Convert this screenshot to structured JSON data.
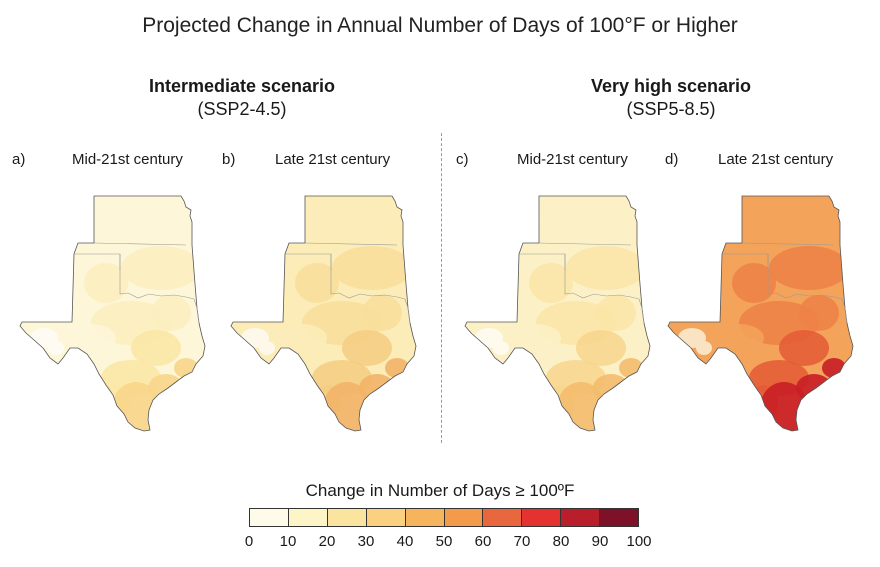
{
  "title": "Projected Change in Annual Number of Days of 100°F or Higher",
  "scenarios": [
    {
      "name": "Intermediate scenario",
      "code": "(SSP2-4.5)"
    },
    {
      "name": "Very high scenario",
      "code": "(SSP5-8.5)"
    }
  ],
  "panels": [
    {
      "letter": "a)",
      "label": "Mid-21st century",
      "scenario": "Intermediate scenario",
      "dominant_range": "0-20",
      "fills": [
        "#fdf6d8",
        "#fcefbe",
        "#fae6a4"
      ],
      "coast_fill": "#f8d68a",
      "west_fill": "#fefcf2"
    },
    {
      "letter": "b)",
      "label": "Late 21st century",
      "scenario": "Intermediate scenario",
      "dominant_range": "10-40",
      "fills": [
        "#fbecb8",
        "#f8de9a",
        "#f5cd81"
      ],
      "coast_fill": "#f3b468",
      "west_fill": "#fdf8ea"
    },
    {
      "letter": "c)",
      "label": "Mid-21st century",
      "scenario": "Very high scenario",
      "dominant_range": "10-40",
      "fills": [
        "#fcf1c6",
        "#fae5a6",
        "#f7d58c"
      ],
      "coast_fill": "#f4bb6d",
      "west_fill": "#fefaee"
    },
    {
      "letter": "d)",
      "label": "Late 21st century",
      "scenario": "Very high scenario",
      "dominant_range": "40-90",
      "fills": [
        "#f3a35a",
        "#ed8146",
        "#e45a36"
      ],
      "coast_fill": "#c91e26",
      "west_fill": "#f9e3c2"
    }
  ],
  "legend": {
    "title": "Change in Number of Days ≥ 100ºF",
    "ticks": [
      "0",
      "10",
      "20",
      "30",
      "40",
      "50",
      "60",
      "70",
      "80",
      "90",
      "100"
    ],
    "colors": [
      "#fefbea",
      "#fdf4c7",
      "#fbe3a0",
      "#f9d180",
      "#f6b55d",
      "#f39a4b",
      "#e9673f",
      "#e3322f",
      "#b91f2b",
      "#7d1128"
    ]
  }
}
